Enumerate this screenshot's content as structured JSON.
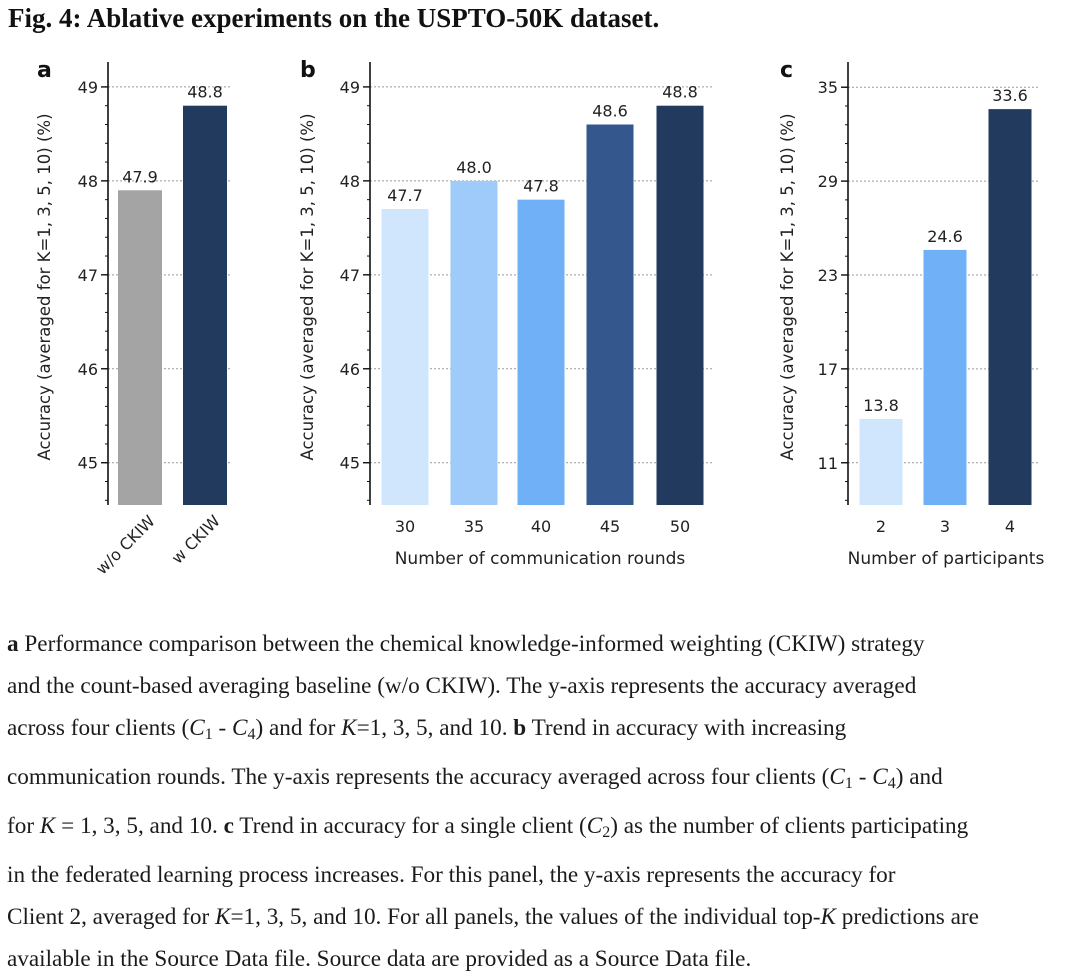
{
  "figure": {
    "title": "Fig. 4: Ablative experiments on the USPTO-50K dataset."
  },
  "chart_data": [
    {
      "panel": "a",
      "type": "bar",
      "categories": [
        "w/o CKIW",
        "w CKIW"
      ],
      "values": [
        47.9,
        48.8
      ],
      "value_labels": [
        "47.9",
        "48.8"
      ],
      "colors": [
        "#a4a4a4",
        "#223a5e"
      ],
      "ylabel": "Accuracy (averaged for K=1, 3, 5, 10) (%)",
      "xlabel": "",
      "ylim": [
        44.55,
        49.18
      ],
      "yticks": [
        45,
        46,
        47,
        48,
        49
      ],
      "ytick_labels": [
        "45",
        "46",
        "47",
        "48",
        "49"
      ],
      "grid": true
    },
    {
      "panel": "b",
      "type": "bar",
      "categories": [
        "30",
        "35",
        "40",
        "45",
        "50"
      ],
      "values": [
        47.7,
        48.0,
        47.8,
        48.6,
        48.8
      ],
      "value_labels": [
        "47.7",
        "48.0",
        "47.8",
        "48.6",
        "48.8"
      ],
      "colors": [
        "#cfe6fd",
        "#9fcbfa",
        "#70b0f7",
        "#34578e",
        "#223a5e"
      ],
      "ylabel": "Accuracy (averaged for K=1, 3, 5, 10) (%)",
      "xlabel": "Number of communication rounds",
      "ylim": [
        44.55,
        49.18
      ],
      "yticks": [
        45,
        46,
        47,
        48,
        49
      ],
      "ytick_labels": [
        "45",
        "46",
        "47",
        "48",
        "49"
      ],
      "grid": true
    },
    {
      "panel": "c",
      "type": "bar",
      "categories": [
        "2",
        "3",
        "4"
      ],
      "values": [
        13.8,
        24.6,
        33.6
      ],
      "value_labels": [
        "13.8",
        "24.6",
        "33.6"
      ],
      "colors": [
        "#cfe6fd",
        "#70b0f7",
        "#223a5e"
      ],
      "ylabel": "Accuracy (averaged for K=1, 3, 5, 10) (%)",
      "xlabel": "Number of participants",
      "ylim": [
        8.3,
        36.1
      ],
      "yticks": [
        11,
        17,
        23,
        29,
        35
      ],
      "ytick_labels": [
        "11",
        "17",
        "23",
        "29",
        "35"
      ],
      "grid": true
    }
  ],
  "caption": {
    "a_label": "a",
    "a_text_1": "Performance comparison between the chemical knowledge-informed weighting (CKIW) strategy",
    "a_text_2": "and the count-based averaging baseline (w/o CKIW). The y-axis represents the accuracy averaged",
    "a_text_3_pre": "across four clients (",
    "c1_base": "C",
    "c1_sub": "1",
    "dash": " - ",
    "c4_base": "C",
    "c4_sub": "4",
    "a_text_3_mid": ") and for ",
    "k_var": "K",
    "a_text_3_post": "=1, 3, 5, and 10.",
    "b_label": "b",
    "b_text_1": " Trend in accuracy with increasing",
    "b_text_2_pre": "communication rounds. The y-axis represents the accuracy averaged across four clients (",
    "b_text_2_post": ") and",
    "b_text_3_pre": "for ",
    "b_text_3_post": " = 1, 3, 5, and 10.",
    "c_label": "c",
    "c_text_1_pre": " Trend in accuracy for a single client (",
    "c2_sub": "2",
    "c_text_1_post": ") as the number of clients participating",
    "c_text_2": "in the federated learning process increases. For this panel, the y-axis represents the accuracy for",
    "c_text_3_pre": "Client 2, averaged for ",
    "c_text_3_post": "=1, 3, 5, and 10. For all panels, the values of the individual top-",
    "c_text_3_end": " predictions are",
    "c_text_4": "available in the Source Data file. Source data are provided as a Source Data file."
  }
}
